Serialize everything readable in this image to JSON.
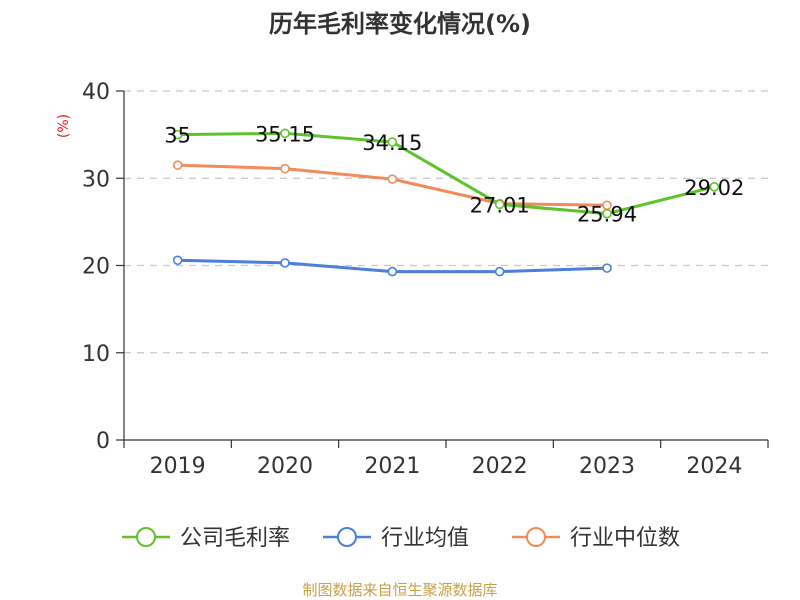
{
  "chart_data": {
    "type": "line",
    "title": "历年毛利率变化情况(%)",
    "ylabel": "(%)",
    "xlabel": "",
    "categories": [
      "2019",
      "2020",
      "2021",
      "2022",
      "2023",
      "2024"
    ],
    "ylim": [
      0,
      40
    ],
    "yticks": [
      "0",
      "10",
      "20",
      "30",
      "40"
    ],
    "grid": true,
    "legend_position": "bottom",
    "series": [
      {
        "name": "公司毛利率",
        "color": "#5ec22c",
        "values": [
          35,
          35.15,
          34.15,
          27.01,
          25.94,
          29.02
        ],
        "labels": [
          "35",
          "35.15",
          "34.15",
          "27.01",
          "25.94",
          "29.02"
        ]
      },
      {
        "name": "行业均值",
        "color": "#4a7fdb",
        "values": [
          20.6,
          20.3,
          19.3,
          19.3,
          19.7,
          null
        ]
      },
      {
        "name": "行业中位数",
        "color": "#f08c5a",
        "values": [
          31.5,
          31.1,
          29.9,
          27.1,
          26.9,
          null
        ]
      }
    ],
    "source": "制图数据来自恒生聚源数据库",
    "source_color": "#c8a04a",
    "ylabel_color": "#e02020"
  }
}
